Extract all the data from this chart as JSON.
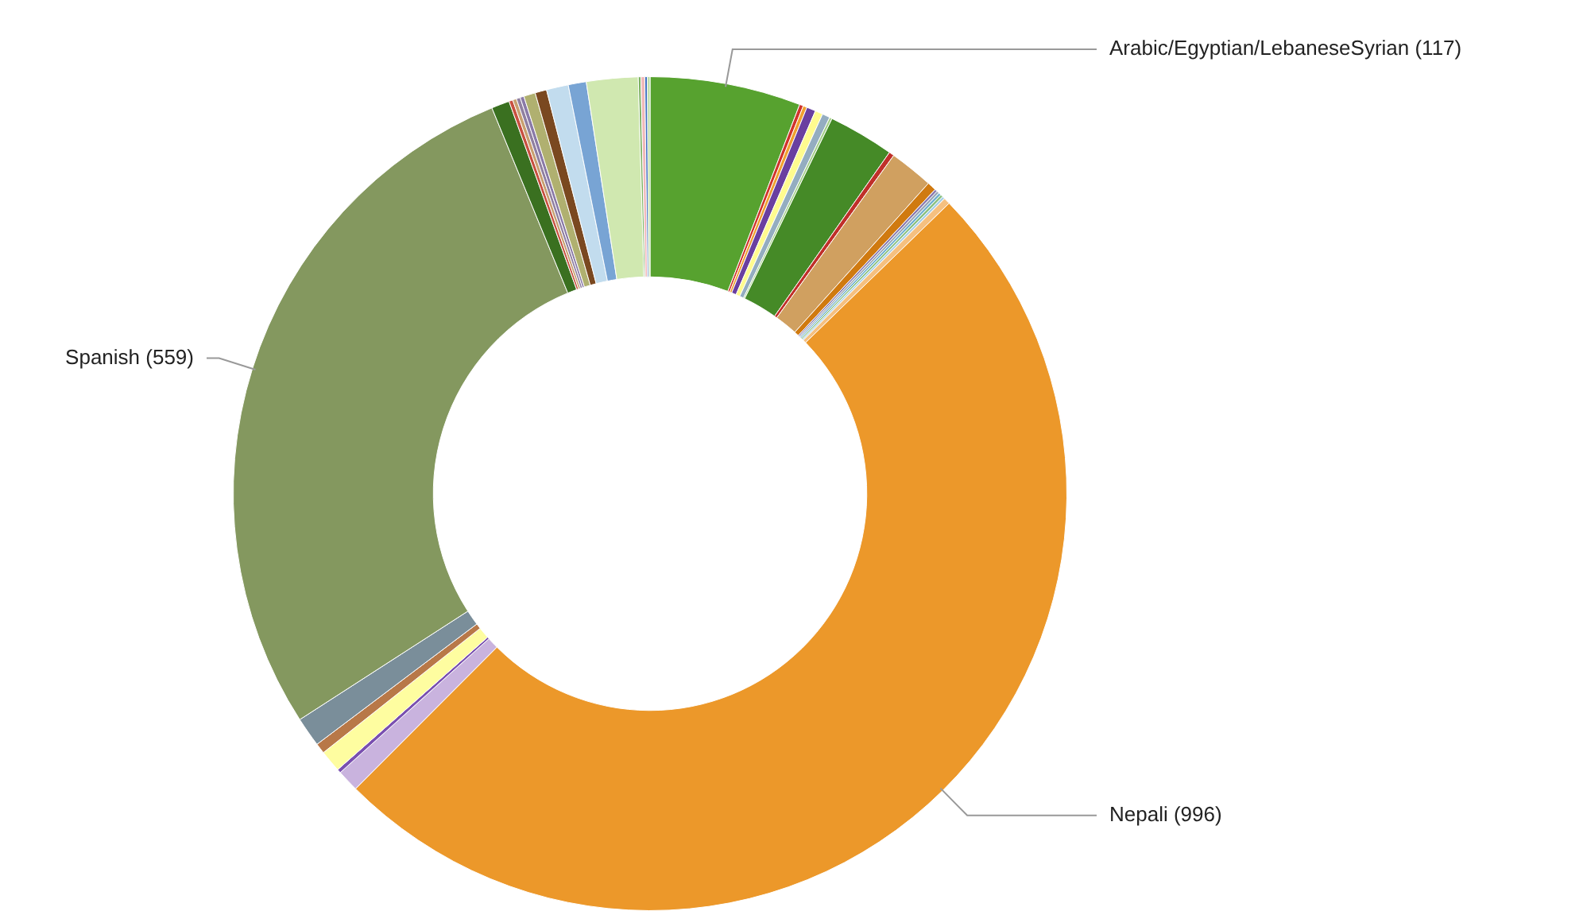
{
  "chart_data": {
    "type": "donut",
    "legend": false,
    "categories": [
      "Arabic/Egyptian/LebaneseSyrian",
      null,
      null,
      null,
      null,
      null,
      null,
      null,
      null,
      null,
      null,
      null,
      null,
      null,
      null,
      null,
      null,
      "Nepali",
      null,
      null,
      null,
      null,
      null,
      "Spanish",
      null,
      null,
      null,
      null,
      null,
      null,
      null,
      null,
      null,
      null,
      null,
      null,
      null,
      null
    ],
    "values": [
      117,
      3,
      3,
      7,
      6,
      6,
      2,
      51,
      4,
      34,
      7,
      2,
      2,
      2,
      2,
      2,
      5,
      996,
      17,
      3,
      17,
      8,
      23,
      559,
      14,
      3,
      3,
      3,
      3,
      9,
      9,
      17,
      14,
      40,
      2,
      3,
      2,
      2
    ],
    "value_labels": [
      "(117)",
      null,
      null,
      null,
      null,
      null,
      null,
      null,
      null,
      null,
      null,
      null,
      null,
      null,
      null,
      null,
      null,
      "(996)",
      null,
      null,
      null,
      null,
      null,
      "(559)",
      null,
      null,
      null,
      null,
      null,
      null,
      null,
      null,
      null,
      null,
      null,
      null,
      null,
      null
    ],
    "colors": [
      "#57a22f",
      "#d0342c",
      "#f0a030",
      "#6a3fa0",
      "#fffb8f",
      "#94adc0",
      "#a6d08a",
      "#458a27",
      "#c0302a",
      "#d0a060",
      "#d07a10",
      "#8a7ab0",
      "#9aa8b8",
      "#70b0d0",
      "#88c080",
      "#a8d0e8",
      "#f5c080",
      "#ec982a",
      "#c9b3de",
      "#7a50b0",
      "#fefda0",
      "#b87848",
      "#7a8e9a",
      "#84985f",
      "#3a7020",
      "#c85040",
      "#c8a070",
      "#9080a0",
      "#8a7aa8",
      "#b0b070",
      "#7a4820",
      "#c2dcee",
      "#78a4d4",
      "#d0e8b0",
      "#7ab060",
      "#f0b8b8",
      "#4070c0",
      "#b8dca0"
    ]
  }
}
